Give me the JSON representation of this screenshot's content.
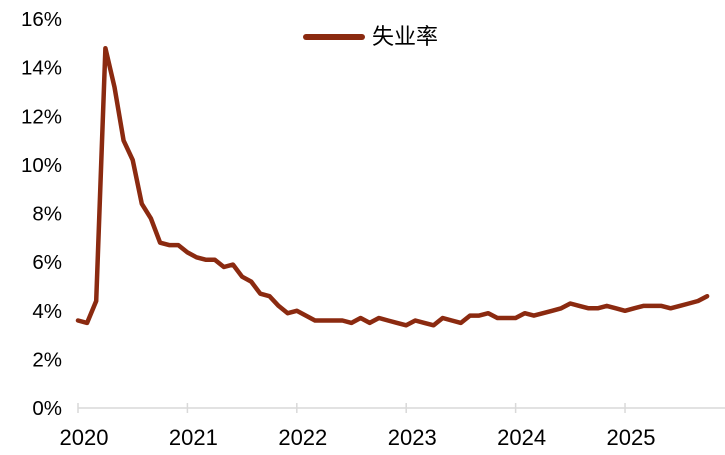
{
  "colors": {
    "line": "#8B2A10",
    "axis": "#D9D9D9",
    "text": "#000000",
    "background": "#FFFFFF"
  },
  "legend": {
    "label": "失业率"
  },
  "chart_data": {
    "type": "line",
    "title": "",
    "xlabel": "",
    "ylabel": "",
    "grid": false,
    "legend_position": "top-center",
    "ylim": [
      0,
      16
    ],
    "y_tick_values": [
      0,
      2,
      4,
      6,
      8,
      10,
      12,
      14,
      16
    ],
    "y_tick_labels": [
      "0%",
      "2%",
      "4%",
      "6%",
      "8%",
      "10%",
      "12%",
      "14%",
      "16%"
    ],
    "x_tick_labels": [
      "2020",
      "2021",
      "2022",
      "2023",
      "2024",
      "2025"
    ],
    "x": [
      "2020-01",
      "2020-02",
      "2020-03",
      "2020-04",
      "2020-05",
      "2020-06",
      "2020-07",
      "2020-08",
      "2020-09",
      "2020-10",
      "2020-11",
      "2020-12",
      "2021-01",
      "2021-02",
      "2021-03",
      "2021-04",
      "2021-05",
      "2021-06",
      "2021-07",
      "2021-08",
      "2021-09",
      "2021-10",
      "2021-11",
      "2021-12",
      "2022-01",
      "2022-02",
      "2022-03",
      "2022-04",
      "2022-05",
      "2022-06",
      "2022-07",
      "2022-08",
      "2022-09",
      "2022-10",
      "2022-11",
      "2022-12",
      "2023-01",
      "2023-02",
      "2023-03",
      "2023-04",
      "2023-05",
      "2023-06",
      "2023-07",
      "2023-08",
      "2023-09",
      "2023-10",
      "2023-11",
      "2023-12",
      "2024-01",
      "2024-02",
      "2024-03",
      "2024-04",
      "2024-05",
      "2024-06",
      "2024-07",
      "2024-08",
      "2024-09",
      "2024-10",
      "2024-11",
      "2024-12",
      "2025-01",
      "2025-02",
      "2025-03",
      "2025-04",
      "2025-05",
      "2025-06",
      "2025-07",
      "2025-08",
      "2025-09",
      "2025-10"
    ],
    "series": [
      {
        "name": "失业率",
        "color": "#8B2A10",
        "values": [
          3.6,
          3.5,
          4.4,
          14.8,
          13.2,
          11.0,
          10.2,
          8.4,
          7.8,
          6.8,
          6.7,
          6.7,
          6.4,
          6.2,
          6.1,
          6.1,
          5.8,
          5.9,
          5.4,
          5.2,
          4.7,
          4.6,
          4.2,
          3.9,
          4.0,
          3.8,
          3.6,
          3.6,
          3.6,
          3.6,
          3.5,
          3.7,
          3.5,
          3.7,
          3.6,
          3.5,
          3.4,
          3.6,
          3.5,
          3.4,
          3.7,
          3.6,
          3.5,
          3.8,
          3.8,
          3.9,
          3.7,
          3.7,
          3.7,
          3.9,
          3.8,
          3.9,
          4.0,
          4.1,
          4.3,
          4.2,
          4.1,
          4.1,
          4.2,
          4.1,
          4.0,
          4.1,
          4.2,
          4.2,
          4.2,
          4.1,
          4.2,
          4.3,
          4.4,
          4.6
        ]
      }
    ]
  }
}
